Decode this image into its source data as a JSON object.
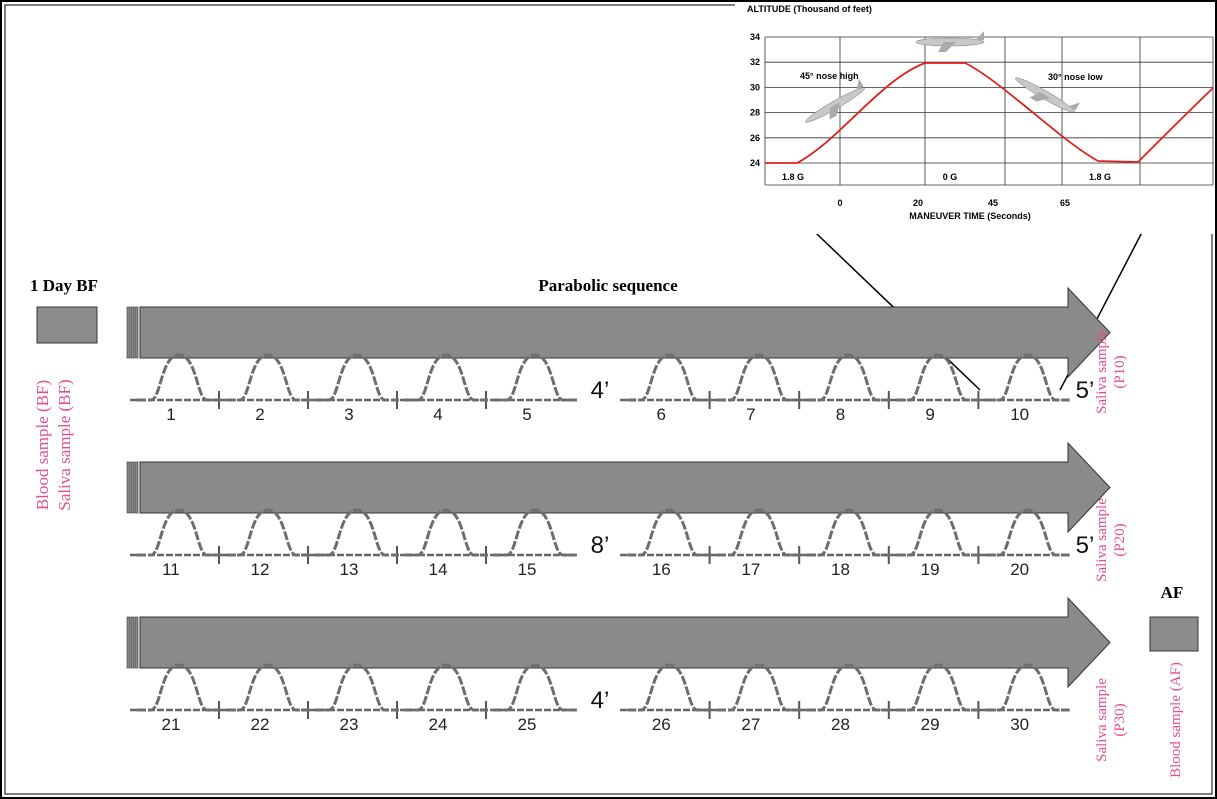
{
  "left": {
    "title": "1 Day BF",
    "samples": [
      "Blood sample (BF)",
      "Saliva sample (BF)"
    ]
  },
  "sequence_title": "Parabolic sequence",
  "rows": [
    {
      "parabolas": [
        1,
        2,
        3,
        4,
        5,
        6,
        7,
        8,
        9,
        10
      ],
      "pause": "4’",
      "end_pause": "5’",
      "sample": [
        "Saliva sample",
        "(P10)"
      ]
    },
    {
      "parabolas": [
        11,
        12,
        13,
        14,
        15,
        16,
        17,
        18,
        19,
        20
      ],
      "pause": "8’",
      "end_pause": "5’",
      "sample": [
        "Saliva sample",
        "(P20)"
      ]
    },
    {
      "parabolas": [
        21,
        22,
        23,
        24,
        25,
        26,
        27,
        28,
        29,
        30
      ],
      "pause": "4’",
      "sample": [
        "Saliva sample",
        "(P30)"
      ]
    }
  ],
  "right": {
    "title": "AF",
    "sample": "Blood sample (AF)"
  },
  "inset": {
    "y_title": "ALTITUDE (Thousand of feet)",
    "x_title": "MANEUVER TIME (Seconds)",
    "yticks": [
      24,
      26,
      28,
      30,
      32,
      34
    ],
    "xticks": [
      "0",
      "20",
      "45",
      "65"
    ],
    "phases": [
      "1.8 G",
      "0 G",
      "1.8 G"
    ],
    "annotations": [
      "45° nose high",
      "30° nose low"
    ]
  }
}
